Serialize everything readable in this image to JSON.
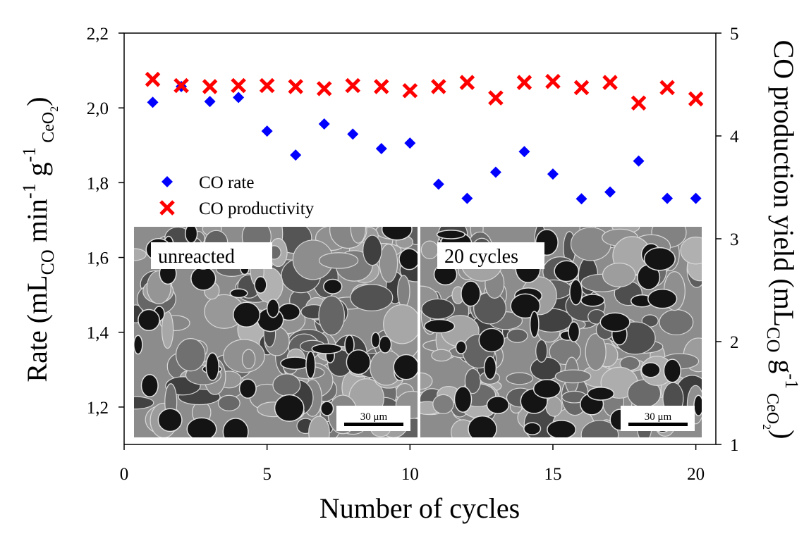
{
  "chart_data": {
    "type": "scatter",
    "x_label": "Number of cycles",
    "y_label_parts": [
      "Rate (mL",
      "CO",
      " min",
      "-1",
      " g",
      "-1",
      " CeO",
      "2",
      ")"
    ],
    "y2_label_parts": [
      "CO production yield (mL",
      "CO",
      " g",
      "-1",
      " CeO",
      "2",
      ")"
    ],
    "x": [
      1,
      2,
      3,
      4,
      5,
      6,
      7,
      8,
      9,
      10,
      11,
      12,
      13,
      14,
      15,
      16,
      17,
      18,
      19,
      20
    ],
    "series": [
      {
        "name": "CO rate",
        "color": "#0000ff",
        "marker": "diamond",
        "values": [
          2.015,
          2.057,
          2.017,
          2.028,
          1.938,
          1.874,
          1.957,
          1.93,
          1.891,
          1.906,
          1.796,
          1.758,
          1.828,
          1.883,
          1.823,
          1.757,
          1.775,
          1.858,
          1.758,
          1.758
        ]
      },
      {
        "name": "CO productivity",
        "color": "#ff0000",
        "marker": "x",
        "axis": "y2",
        "values": [
          4.55,
          4.49,
          4.48,
          4.49,
          4.49,
          4.48,
          4.46,
          4.49,
          4.48,
          4.44,
          4.48,
          4.52,
          4.37,
          4.52,
          4.53,
          4.47,
          4.52,
          4.32,
          4.47,
          4.36
        ]
      }
    ],
    "xlim": [
      0,
      20.7
    ],
    "xticks": [
      0,
      5,
      10,
      15,
      20
    ],
    "ylim": [
      1.1,
      2.2
    ],
    "yticks": [
      {
        "value": 1.2,
        "label": "1,2"
      },
      {
        "value": 1.4,
        "label": "1,4"
      },
      {
        "value": 1.6,
        "label": "1,6"
      },
      {
        "value": 1.8,
        "label": "1,8"
      },
      {
        "value": 2.0,
        "label": "2,0"
      },
      {
        "value": 2.2,
        "label": "2,2"
      }
    ],
    "y2lim": [
      1,
      5
    ],
    "y2ticks": [
      1,
      2,
      3,
      4,
      5
    ],
    "inset": {
      "panels": [
        {
          "label": "unreacted",
          "scale_bar": "30 μm"
        },
        {
          "label": "20 cycles",
          "scale_bar": "30 μm"
        }
      ]
    }
  }
}
